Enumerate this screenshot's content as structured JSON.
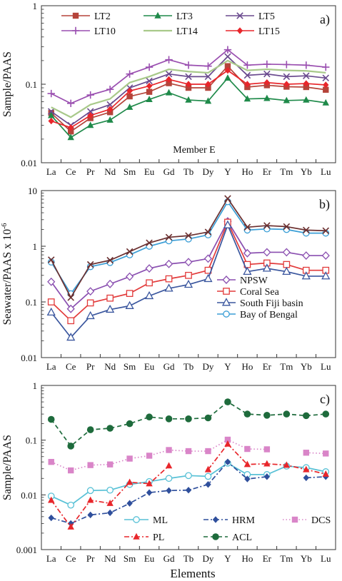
{
  "x_axis_title": "Elements",
  "colors": {
    "LT2": "#b5443a",
    "LT3": "#1f8a4a",
    "LT5": "#6a4a8e",
    "LT10": "#9a4fb0",
    "LT14": "#a8c98a",
    "LT15": "#e8262b",
    "NPSW": "#8a4fb0",
    "Coral Sea": "#e23b3b",
    "South Fiji basin": "#3a569e",
    "Bay of Bengal": "#3a9ed6",
    "ML": "#58c1d6",
    "HRM": "#2f4f9c",
    "DCS": "#d985c8",
    "PL": "#e8262b",
    "ACL": "#1e6b3c"
  },
  "chart_data": [
    {
      "type": "line",
      "panel_label": "a)",
      "ylabel": "Sample/PAAS",
      "yscale": "log",
      "ylim": [
        0.01,
        1
      ],
      "yticks": [
        "0.01",
        "0.1",
        "1"
      ],
      "annotation": "Member E",
      "categories": [
        "La",
        "Ce",
        "Pr",
        "Nd",
        "Sm",
        "Eu",
        "Gd",
        "Tb",
        "Dy",
        "Y",
        "Ho",
        "Er",
        "Tm",
        "Yb",
        "Lu"
      ],
      "legend_columns": 3,
      "series": [
        {
          "name": "LT2",
          "marker": "square",
          "values": [
            0.043,
            0.025,
            0.037,
            0.044,
            0.07,
            0.08,
            0.103,
            0.09,
            0.09,
            0.17,
            0.092,
            0.097,
            0.093,
            0.092,
            0.085
          ]
        },
        {
          "name": "LT3",
          "marker": "triangle",
          "values": [
            0.04,
            0.021,
            0.03,
            0.035,
            0.051,
            0.064,
            0.078,
            0.063,
            0.061,
            0.12,
            0.065,
            0.066,
            0.062,
            0.063,
            0.058
          ]
        },
        {
          "name": "LT5",
          "marker": "x",
          "values": [
            0.045,
            0.03,
            0.045,
            0.055,
            0.09,
            0.11,
            0.135,
            0.125,
            0.125,
            0.225,
            0.13,
            0.135,
            0.125,
            0.128,
            0.12
          ]
        },
        {
          "name": "LT10",
          "marker": "plus",
          "values": [
            0.076,
            0.057,
            0.073,
            0.086,
            0.135,
            0.165,
            0.205,
            0.175,
            0.17,
            0.275,
            0.175,
            0.18,
            0.178,
            0.175,
            0.165
          ]
        },
        {
          "name": "LT14",
          "marker": "none",
          "values": [
            0.051,
            0.038,
            0.055,
            0.065,
            0.105,
            0.125,
            0.155,
            0.145,
            0.14,
            0.2,
            0.15,
            0.155,
            0.15,
            0.148,
            0.14
          ]
        },
        {
          "name": "LT15",
          "marker": "diamond",
          "values": [
            0.034,
            0.028,
            0.04,
            0.048,
            0.082,
            0.095,
            0.115,
            0.1,
            0.1,
            0.15,
            0.1,
            0.105,
            0.1,
            0.102,
            0.098
          ]
        }
      ]
    },
    {
      "type": "line",
      "panel_label": "b)",
      "ylabel": "Seawater/PAAS x 10",
      "ylabel_superscript": "-6",
      "yscale": "log",
      "ylim": [
        0.01,
        10
      ],
      "yticks": [
        "0.01",
        "0.1",
        "1",
        "10"
      ],
      "categories": [
        "La",
        "Ce",
        "Pr",
        "Nd",
        "Sm",
        "Eu",
        "Gd",
        "Tb",
        "Dy",
        "Y",
        "Ho",
        "Er",
        "Tm",
        "Yb",
        "Lu"
      ],
      "legend_columns": 1,
      "series": [
        {
          "name": "NPSW",
          "marker": "diamond_open",
          "values": [
            0.23,
            0.075,
            0.155,
            0.21,
            0.285,
            0.4,
            0.48,
            0.52,
            0.6,
            2.8,
            0.75,
            0.78,
            0.78,
            0.68,
            0.68
          ]
        },
        {
          "name": "Coral Sea",
          "marker": "square_open",
          "values": [
            0.1,
            0.046,
            0.096,
            0.117,
            0.142,
            0.22,
            0.26,
            0.3,
            0.37,
            2.7,
            0.47,
            0.5,
            0.47,
            0.37,
            0.37
          ]
        },
        {
          "name": "South Fiji basin",
          "marker": "triangle_open",
          "values": [
            0.065,
            0.023,
            0.056,
            0.073,
            0.085,
            0.128,
            0.175,
            0.205,
            0.26,
            2.4,
            0.35,
            0.4,
            0.35,
            0.29,
            0.29
          ]
        },
        {
          "name": "Bay of Bengal",
          "marker": "circle_open",
          "values": [
            0.52,
            0.14,
            0.43,
            0.51,
            0.7,
            1.0,
            1.25,
            1.35,
            1.6,
            6.3,
            1.95,
            2.05,
            2.0,
            1.72,
            1.72
          ]
        },
        {
          "name": "",
          "marker": "x_dark",
          "color": "#6b2f2f",
          "values": [
            0.57,
            0.12,
            0.47,
            0.56,
            0.8,
            1.15,
            1.45,
            1.55,
            1.8,
            7.2,
            2.2,
            2.35,
            2.25,
            1.95,
            1.9
          ]
        }
      ]
    },
    {
      "type": "line",
      "panel_label": "c)",
      "ylabel": "Sample/PAAS",
      "xlabel": "Elements",
      "yscale": "log",
      "ylim": [
        0.001,
        1
      ],
      "yticks": [
        "0.001",
        "0.01",
        "0.1",
        "1"
      ],
      "categories": [
        "La",
        "Ce",
        "Pr",
        "Nd",
        "Sm",
        "Eu",
        "Gd",
        "Tb",
        "Dy",
        "Y",
        "Ho",
        "Er",
        "Tm",
        "Yb",
        "Lu"
      ],
      "legend_columns": 3,
      "series": [
        {
          "name": "ML",
          "marker": "circle_open",
          "dash": "solid",
          "values": [
            0.0095,
            0.0065,
            0.012,
            0.0122,
            0.0155,
            0.0175,
            0.02,
            0.0225,
            0.0218,
            0.038,
            0.0235,
            0.0235,
            0.0335,
            0.0315,
            0.0265
          ]
        },
        {
          "name": "HRM",
          "marker": "diamond",
          "dash": "dashdot",
          "values": [
            0.0038,
            0.003,
            0.0043,
            0.0047,
            0.007,
            0.011,
            0.012,
            0.0122,
            0.0155,
            0.04,
            0.0195,
            0.0215,
            null,
            0.0205,
            0.0215
          ]
        },
        {
          "name": "DCS",
          "marker": "square",
          "dash": "dotted",
          "values": [
            0.04,
            0.028,
            0.035,
            0.036,
            0.046,
            0.052,
            0.066,
            0.063,
            0.063,
            0.102,
            0.069,
            0.068,
            null,
            0.059,
            0.057
          ]
        },
        {
          "name": "PL",
          "marker": "triangle",
          "dash": "dashdot",
          "values": [
            0.008,
            0.0026,
            0.008,
            0.007,
            0.017,
            0.016,
            0.034,
            null,
            0.029,
            0.085,
            0.036,
            0.037,
            0.035,
            0.029,
            0.024
          ]
        },
        {
          "name": "ACL",
          "marker": "circle",
          "dash": "dashed",
          "values": [
            0.24,
            0.078,
            0.155,
            0.165,
            0.2,
            0.265,
            0.245,
            0.245,
            0.255,
            0.5,
            0.3,
            0.285,
            0.3,
            0.28,
            0.3
          ]
        }
      ]
    }
  ]
}
